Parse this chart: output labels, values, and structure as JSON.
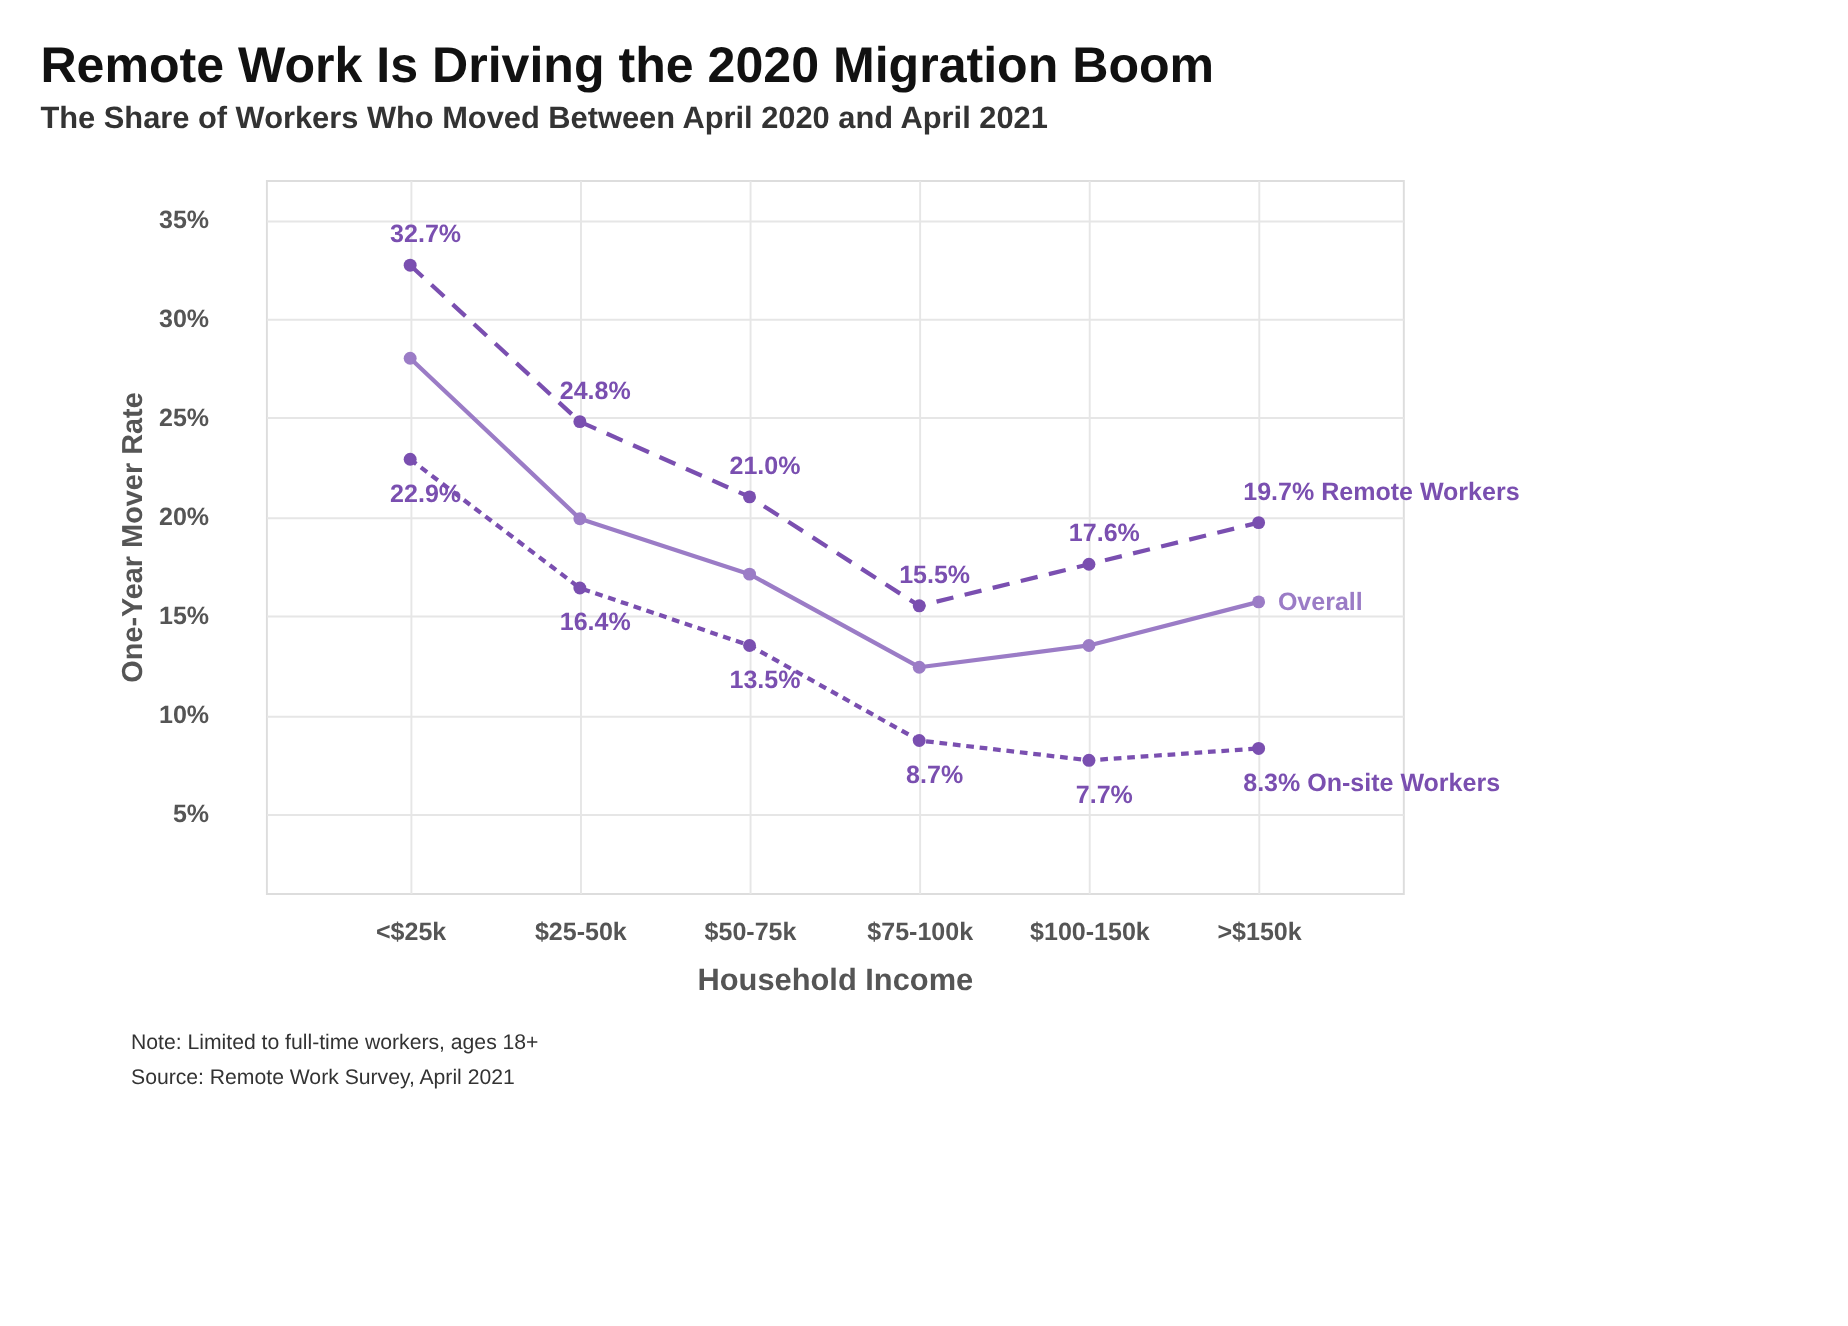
{
  "chart_data": {
    "type": "line",
    "title": "Remote Work Is Driving the 2020 Migration Boom",
    "subtitle": "The Share of Workers Who Moved Between April 2020 and April 2021",
    "xlabel": "Household Income",
    "ylabel": "One-Year Mover Rate",
    "categories": [
      "<$25k",
      "$25-50k",
      "$50-75k",
      "$75-100k",
      "$100-150k",
      ">$150k"
    ],
    "series": [
      {
        "name": "Remote Workers",
        "color": "#7a4fb0",
        "line_style": "dashed",
        "values": [
          32.7,
          24.8,
          21.0,
          15.5,
          17.6,
          19.7
        ],
        "value_labels": [
          "32.7%",
          "24.8%",
          "21.0%",
          "15.5%",
          "17.6%",
          "19.7%"
        ]
      },
      {
        "name": "Overall",
        "color": "#9b7cc6",
        "line_style": "solid",
        "values": [
          28.0,
          19.9,
          17.1,
          12.4,
          13.5,
          15.7
        ]
      },
      {
        "name": "On-site Workers",
        "color": "#7a4fb0",
        "line_style": "dotted",
        "values": [
          22.9,
          16.4,
          13.5,
          8.7,
          7.7,
          8.3
        ],
        "value_labels": [
          "22.9%",
          "16.4%",
          "13.5%",
          "8.7%",
          "7.7%",
          "8.3%"
        ]
      }
    ],
    "ylim": [
      1,
      37
    ],
    "yticks": [
      {
        "value": 5,
        "label": "5%"
      },
      {
        "value": 10,
        "label": "10%"
      },
      {
        "value": 15,
        "label": "15%"
      },
      {
        "value": 20,
        "label": "20%"
      },
      {
        "value": 25,
        "label": "25%"
      },
      {
        "value": 30,
        "label": "30%"
      },
      {
        "value": 35,
        "label": "35%"
      }
    ],
    "grid": true,
    "marker": "circle",
    "annotations": [
      "Note: Limited to full-time workers, ages 18+",
      "Source: Remote Work Survey, April 2021"
    ]
  }
}
